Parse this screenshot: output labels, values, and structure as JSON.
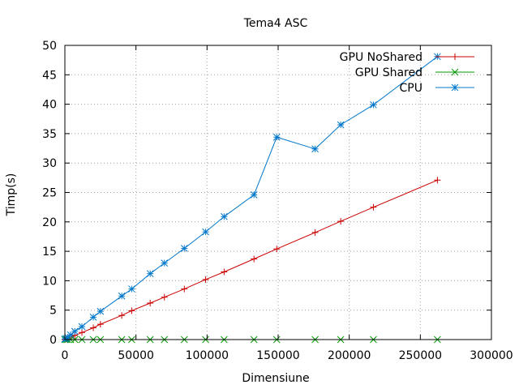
{
  "chart_data": {
    "type": "line",
    "title": "Tema4 ASC",
    "xlabel": "Dimensiune",
    "ylabel": "Timp(s)",
    "xlim": [
      0,
      300000
    ],
    "ylim": [
      0,
      50
    ],
    "xticks": [
      0,
      50000,
      100000,
      150000,
      200000,
      250000,
      300000
    ],
    "yticks": [
      0,
      5,
      10,
      15,
      20,
      25,
      30,
      35,
      40,
      45,
      50
    ],
    "grid": true,
    "legend": "top-right",
    "series": [
      {
        "name": "GPU NoShared",
        "color": "#cc0000",
        "marker": "plus",
        "x": [
          0,
          1000,
          2000,
          4000,
          7000,
          12000,
          20000,
          25000,
          40000,
          47000,
          60000,
          70000,
          84000,
          99000,
          112000,
          133000,
          149000,
          176000,
          194000,
          217000,
          262000
        ],
        "y": [
          0.0,
          0.1,
          0.2,
          0.4,
          0.7,
          1.2,
          2.0,
          2.6,
          4.1,
          4.9,
          6.2,
          7.2,
          8.6,
          10.2,
          11.5,
          13.7,
          15.4,
          18.2,
          20.1,
          22.5,
          27.1
        ]
      },
      {
        "name": "GPU Shared",
        "color": "#009900",
        "marker": "cross",
        "x": [
          0,
          1000,
          2000,
          4000,
          7000,
          12000,
          20000,
          25000,
          40000,
          47000,
          60000,
          70000,
          84000,
          99000,
          112000,
          133000,
          149000,
          176000,
          194000,
          217000,
          262000
        ],
        "y": [
          0.0,
          0.0,
          0.0,
          0.0,
          0.0,
          0.0,
          0.0,
          0.0,
          0.0,
          0.0,
          0.0,
          0.0,
          0.0,
          0.0,
          0.0,
          0.0,
          0.0,
          0.0,
          0.0,
          0.0,
          0.0
        ]
      },
      {
        "name": "CPU",
        "color": "#0077cc",
        "marker": "star",
        "x": [
          0,
          1000,
          2000,
          4000,
          7000,
          12000,
          20000,
          25000,
          40000,
          47000,
          60000,
          70000,
          84000,
          99000,
          112000,
          133000,
          149000,
          176000,
          194000,
          217000,
          262000
        ],
        "y": [
          0.1,
          0.2,
          0.4,
          0.8,
          1.4,
          2.2,
          3.8,
          4.8,
          7.4,
          8.6,
          11.2,
          13.0,
          15.5,
          18.3,
          20.9,
          24.6,
          34.4,
          32.4,
          36.5,
          39.9,
          48.1
        ]
      }
    ]
  }
}
